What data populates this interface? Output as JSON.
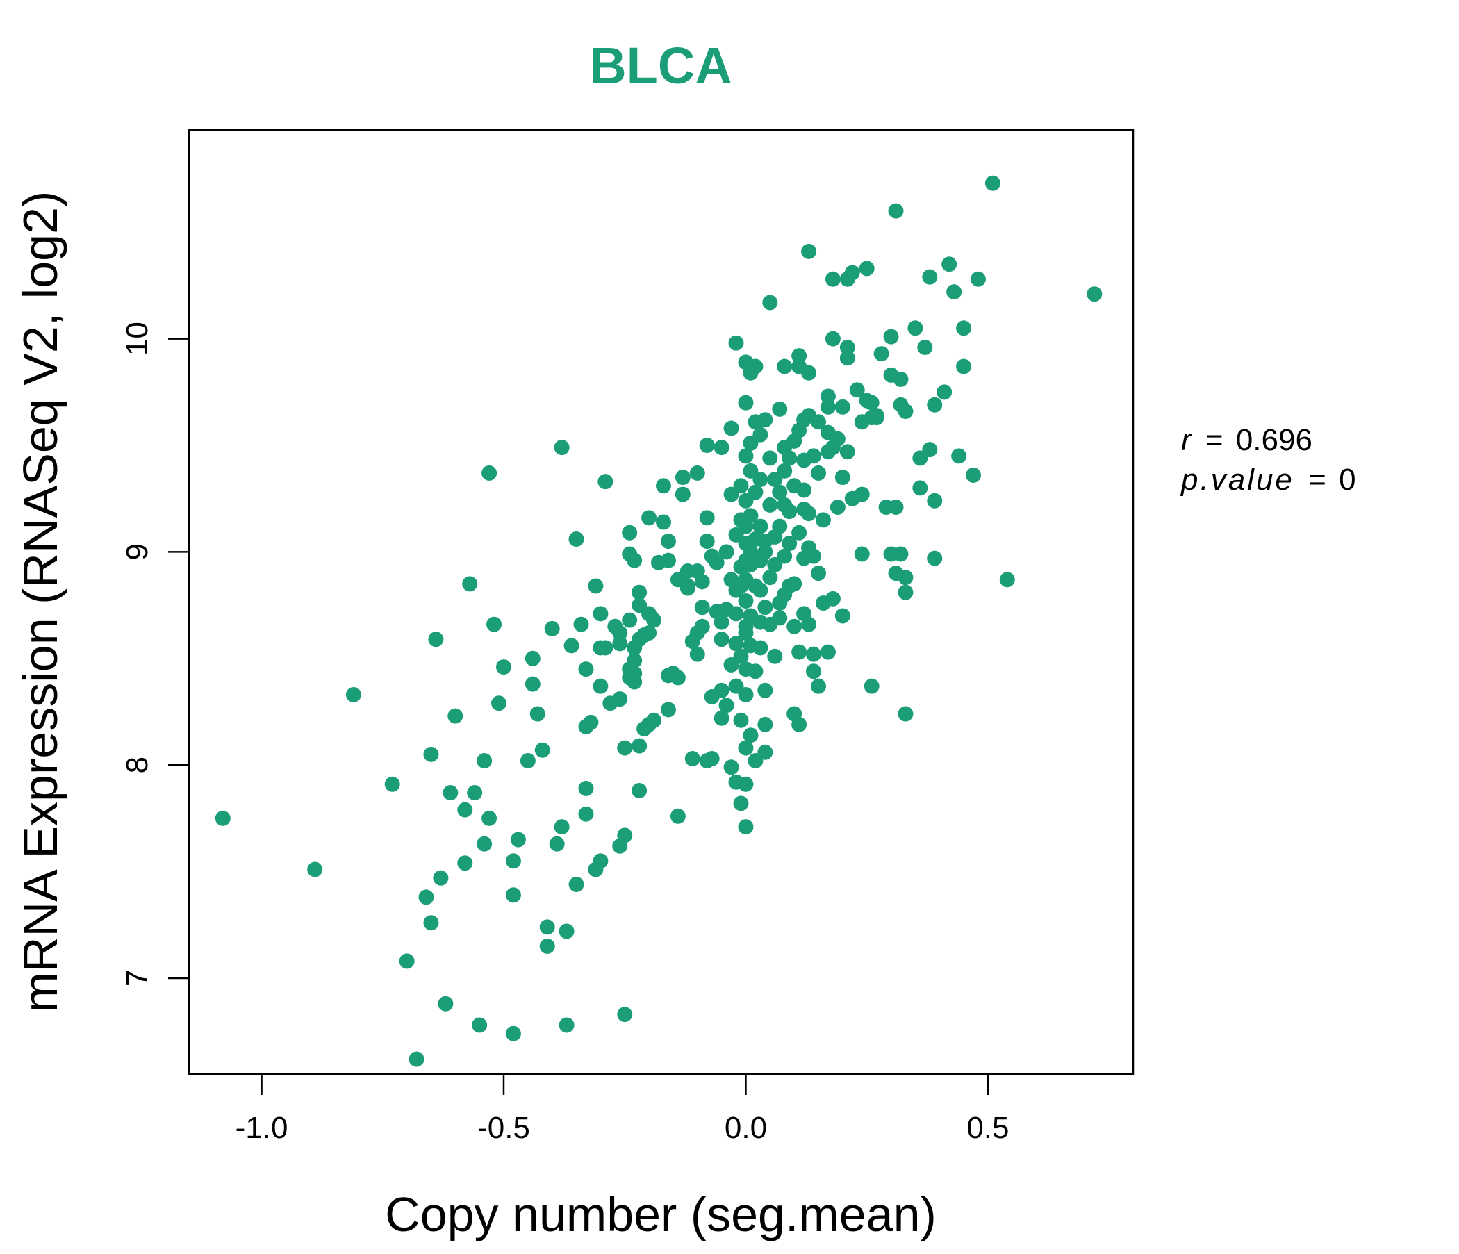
{
  "chart_data": {
    "type": "scatter",
    "title": "BLCA",
    "xlabel": "Copy number (seg.mean)",
    "ylabel": "mRNA Expression (RNASeq V2, log2)",
    "xlim": [
      -1.15,
      0.8
    ],
    "ylim": [
      6.55,
      10.98
    ],
    "xticks": [
      -1.0,
      -0.5,
      0.0,
      0.5
    ],
    "xtick_labels": [
      "-1.0",
      "-0.5",
      "0.0",
      "0.5"
    ],
    "yticks": [
      7,
      8,
      9,
      10
    ],
    "ytick_labels": [
      "7",
      "8",
      "9",
      "10"
    ],
    "grid": false,
    "legend": "none",
    "point_color": "#1b9e77",
    "annotations": {
      "r_label": "r",
      "r_value": "0.696",
      "p_label": "p.value",
      "p_value": "0"
    },
    "points": [
      [
        -1.08,
        7.75
      ],
      [
        -0.89,
        7.51
      ],
      [
        -0.81,
        8.33
      ],
      [
        -0.73,
        7.91
      ],
      [
        -0.7,
        7.08
      ],
      [
        -0.68,
        6.62
      ],
      [
        -0.66,
        7.38
      ],
      [
        -0.65,
        7.26
      ],
      [
        -0.65,
        8.05
      ],
      [
        -0.64,
        8.59
      ],
      [
        -0.63,
        7.47
      ],
      [
        -0.62,
        6.88
      ],
      [
        -0.61,
        7.87
      ],
      [
        -0.6,
        8.23
      ],
      [
        -0.58,
        7.54
      ],
      [
        -0.58,
        7.79
      ],
      [
        -0.57,
        8.85
      ],
      [
        -0.56,
        7.87
      ],
      [
        -0.55,
        6.78
      ],
      [
        -0.54,
        7.63
      ],
      [
        -0.54,
        8.02
      ],
      [
        -0.53,
        9.37
      ],
      [
        -0.53,
        7.75
      ],
      [
        -0.52,
        8.66
      ],
      [
        -0.51,
        8.29
      ],
      [
        -0.5,
        8.46
      ],
      [
        -0.48,
        6.74
      ],
      [
        -0.48,
        7.39
      ],
      [
        -0.48,
        7.55
      ],
      [
        -0.47,
        7.65
      ],
      [
        -0.45,
        8.02
      ],
      [
        -0.44,
        8.38
      ],
      [
        -0.44,
        8.5
      ],
      [
        -0.43,
        8.24
      ],
      [
        -0.42,
        8.07
      ],
      [
        -0.41,
        7.15
      ],
      [
        -0.41,
        7.24
      ],
      [
        -0.4,
        8.64
      ],
      [
        -0.39,
        7.63
      ],
      [
        -0.38,
        9.49
      ],
      [
        -0.38,
        7.71
      ],
      [
        -0.37,
        7.22
      ],
      [
        -0.37,
        6.78
      ],
      [
        -0.36,
        8.56
      ],
      [
        -0.35,
        7.44
      ],
      [
        -0.35,
        9.06
      ],
      [
        -0.34,
        8.66
      ],
      [
        -0.33,
        7.89
      ],
      [
        -0.33,
        7.77
      ],
      [
        -0.33,
        8.45
      ],
      [
        -0.33,
        8.18
      ],
      [
        -0.32,
        8.2
      ],
      [
        -0.31,
        8.84
      ],
      [
        -0.31,
        7.51
      ],
      [
        -0.3,
        8.71
      ],
      [
        -0.3,
        7.55
      ],
      [
        -0.3,
        8.37
      ],
      [
        -0.3,
        8.55
      ],
      [
        -0.29,
        8.55
      ],
      [
        -0.29,
        9.33
      ],
      [
        -0.28,
        8.29
      ],
      [
        -0.27,
        8.65
      ],
      [
        -0.26,
        8.62
      ],
      [
        -0.26,
        8.57
      ],
      [
        -0.26,
        7.62
      ],
      [
        -0.26,
        8.31
      ],
      [
        -0.25,
        6.83
      ],
      [
        -0.25,
        8.08
      ],
      [
        -0.25,
        7.67
      ],
      [
        -0.24,
        8.68
      ],
      [
        -0.24,
        9.09
      ],
      [
        -0.24,
        8.99
      ],
      [
        -0.24,
        8.45
      ],
      [
        -0.24,
        8.41
      ],
      [
        -0.23,
        8.49
      ],
      [
        -0.23,
        8.96
      ],
      [
        -0.23,
        8.39
      ],
      [
        -0.23,
        8.43
      ],
      [
        -0.23,
        8.55
      ],
      [
        -0.22,
        8.59
      ],
      [
        -0.22,
        8.81
      ],
      [
        -0.22,
        8.75
      ],
      [
        -0.22,
        8.09
      ],
      [
        -0.22,
        7.88
      ],
      [
        -0.21,
        8.61
      ],
      [
        -0.21,
        8.17
      ],
      [
        -0.2,
        8.19
      ],
      [
        -0.2,
        8.62
      ],
      [
        -0.2,
        9.16
      ],
      [
        -0.2,
        8.71
      ],
      [
        -0.19,
        8.21
      ],
      [
        -0.19,
        8.68
      ],
      [
        -0.18,
        8.95
      ],
      [
        -0.17,
        9.14
      ],
      [
        -0.17,
        9.31
      ],
      [
        -0.16,
        8.96
      ],
      [
        -0.16,
        9.05
      ],
      [
        -0.16,
        8.26
      ],
      [
        -0.16,
        8.42
      ],
      [
        -0.15,
        8.43
      ],
      [
        -0.14,
        8.41
      ],
      [
        -0.14,
        7.76
      ],
      [
        -0.14,
        8.87
      ],
      [
        -0.13,
        9.27
      ],
      [
        -0.13,
        9.35
      ],
      [
        -0.12,
        8.84
      ],
      [
        -0.12,
        8.91
      ],
      [
        -0.12,
        8.83
      ],
      [
        -0.11,
        8.58
      ],
      [
        -0.11,
        8.03
      ],
      [
        -0.1,
        9.37
      ],
      [
        -0.1,
        8.91
      ],
      [
        -0.1,
        8.62
      ],
      [
        -0.1,
        8.52
      ],
      [
        -0.09,
        8.74
      ],
      [
        -0.09,
        8.86
      ],
      [
        -0.09,
        8.65
      ],
      [
        -0.08,
        9.5
      ],
      [
        -0.08,
        9.16
      ],
      [
        -0.08,
        8.02
      ],
      [
        -0.08,
        9.05
      ],
      [
        -0.07,
        8.03
      ],
      [
        -0.07,
        8.98
      ],
      [
        -0.07,
        8.32
      ],
      [
        -0.06,
        8.72
      ],
      [
        -0.06,
        8.95
      ],
      [
        -0.05,
        8.35
      ],
      [
        -0.05,
        8.22
      ],
      [
        -0.05,
        8.67
      ],
      [
        -0.05,
        8.59
      ],
      [
        -0.05,
        9.49
      ],
      [
        -0.04,
        8.73
      ],
      [
        -0.04,
        9.0
      ],
      [
        -0.04,
        8.28
      ],
      [
        -0.03,
        8.47
      ],
      [
        -0.03,
        7.99
      ],
      [
        -0.03,
        8.87
      ],
      [
        -0.03,
        9.58
      ],
      [
        -0.03,
        9.27
      ],
      [
        -0.02,
        7.92
      ],
      [
        -0.02,
        8.37
      ],
      [
        -0.02,
        8.57
      ],
      [
        -0.02,
        8.71
      ],
      [
        -0.02,
        8.82
      ],
      [
        -0.02,
        9.08
      ],
      [
        -0.02,
        9.98
      ],
      [
        -0.01,
        7.82
      ],
      [
        -0.01,
        8.51
      ],
      [
        -0.01,
        8.93
      ],
      [
        -0.01,
        9.15
      ],
      [
        -0.01,
        9.31
      ],
      [
        -0.01,
        8.84
      ],
      [
        -0.01,
        8.21
      ],
      [
        0.0,
        8.08
      ],
      [
        0.0,
        8.62
      ],
      [
        0.0,
        8.96
      ],
      [
        0.0,
        9.45
      ],
      [
        0.0,
        7.91
      ],
      [
        0.0,
        8.33
      ],
      [
        0.0,
        8.65
      ],
      [
        0.0,
        8.77
      ],
      [
        0.0,
        9.04
      ],
      [
        0.0,
        9.24
      ],
      [
        0.0,
        9.7
      ],
      [
        0.0,
        7.71
      ],
      [
        0.0,
        8.45
      ],
      [
        0.0,
        8.87
      ],
      [
        0.0,
        9.12
      ],
      [
        0.0,
        9.89
      ],
      [
        0.01,
        8.14
      ],
      [
        0.01,
        8.56
      ],
      [
        0.01,
        8.7
      ],
      [
        0.01,
        9.0
      ],
      [
        0.01,
        9.38
      ],
      [
        0.01,
        9.84
      ],
      [
        0.01,
        9.51
      ],
      [
        0.01,
        8.94
      ],
      [
        0.01,
        9.17
      ],
      [
        0.02,
        9.61
      ],
      [
        0.02,
        8.02
      ],
      [
        0.02,
        8.44
      ],
      [
        0.02,
        8.84
      ],
      [
        0.02,
        9.06
      ],
      [
        0.02,
        9.28
      ],
      [
        0.02,
        9.87
      ],
      [
        0.03,
        8.67
      ],
      [
        0.03,
        8.96
      ],
      [
        0.03,
        9.12
      ],
      [
        0.03,
        9.55
      ],
      [
        0.03,
        8.55
      ],
      [
        0.03,
        8.82
      ],
      [
        0.03,
        9.34
      ],
      [
        0.04,
        8.06
      ],
      [
        0.04,
        8.19
      ],
      [
        0.04,
        8.74
      ],
      [
        0.04,
        9.05
      ],
      [
        0.04,
        9.62
      ],
      [
        0.04,
        8.35
      ],
      [
        0.04,
        9.0
      ],
      [
        0.05,
        9.22
      ],
      [
        0.05,
        10.17
      ],
      [
        0.05,
        8.88
      ],
      [
        0.05,
        9.44
      ],
      [
        0.05,
        8.66
      ],
      [
        0.06,
        9.07
      ],
      [
        0.06,
        8.51
      ],
      [
        0.06,
        9.34
      ],
      [
        0.06,
        8.94
      ],
      [
        0.07,
        8.76
      ],
      [
        0.07,
        9.67
      ],
      [
        0.07,
        9.28
      ],
      [
        0.07,
        9.12
      ],
      [
        0.07,
        8.69
      ],
      [
        0.08,
        8.98
      ],
      [
        0.08,
        9.22
      ],
      [
        0.08,
        9.49
      ],
      [
        0.08,
        9.87
      ],
      [
        0.08,
        8.8
      ],
      [
        0.08,
        9.38
      ],
      [
        0.09,
        8.84
      ],
      [
        0.09,
        9.44
      ],
      [
        0.09,
        9.19
      ],
      [
        0.09,
        9.04
      ],
      [
        0.1,
        8.65
      ],
      [
        0.1,
        9.52
      ],
      [
        0.1,
        9.31
      ],
      [
        0.1,
        8.85
      ],
      [
        0.1,
        8.24
      ],
      [
        0.11,
        9.57
      ],
      [
        0.11,
        9.92
      ],
      [
        0.11,
        9.09
      ],
      [
        0.11,
        8.53
      ],
      [
        0.11,
        8.19
      ],
      [
        0.11,
        9.87
      ],
      [
        0.12,
        9.62
      ],
      [
        0.12,
        9.2
      ],
      [
        0.12,
        8.71
      ],
      [
        0.12,
        9.29
      ],
      [
        0.12,
        8.97
      ],
      [
        0.12,
        9.43
      ],
      [
        0.13,
        8.66
      ],
      [
        0.13,
        9.02
      ],
      [
        0.13,
        10.41
      ],
      [
        0.13,
        9.84
      ],
      [
        0.13,
        9.64
      ],
      [
        0.13,
        9.18
      ],
      [
        0.14,
        8.44
      ],
      [
        0.14,
        9.45
      ],
      [
        0.14,
        8.98
      ],
      [
        0.14,
        8.52
      ],
      [
        0.15,
        8.9
      ],
      [
        0.15,
        8.37
      ],
      [
        0.15,
        9.37
      ],
      [
        0.15,
        9.61
      ],
      [
        0.16,
        9.15
      ],
      [
        0.16,
        8.76
      ],
      [
        0.17,
        9.73
      ],
      [
        0.17,
        9.47
      ],
      [
        0.17,
        8.53
      ],
      [
        0.17,
        9.68
      ],
      [
        0.17,
        9.56
      ],
      [
        0.18,
        8.78
      ],
      [
        0.18,
        9.49
      ],
      [
        0.18,
        10.0
      ],
      [
        0.18,
        10.28
      ],
      [
        0.19,
        9.21
      ],
      [
        0.19,
        9.53
      ],
      [
        0.2,
        8.7
      ],
      [
        0.2,
        9.68
      ],
      [
        0.2,
        9.35
      ],
      [
        0.21,
        10.28
      ],
      [
        0.21,
        9.96
      ],
      [
        0.21,
        9.91
      ],
      [
        0.21,
        9.47
      ],
      [
        0.22,
        9.25
      ],
      [
        0.22,
        10.31
      ],
      [
        0.23,
        9.76
      ],
      [
        0.24,
        9.27
      ],
      [
        0.24,
        8.99
      ],
      [
        0.24,
        9.61
      ],
      [
        0.25,
        10.33
      ],
      [
        0.25,
        9.71
      ],
      [
        0.26,
        9.7
      ],
      [
        0.26,
        9.63
      ],
      [
        0.26,
        8.37
      ],
      [
        0.27,
        9.63
      ],
      [
        0.27,
        9.64
      ],
      [
        0.28,
        9.93
      ],
      [
        0.29,
        9.21
      ],
      [
        0.3,
        10.01
      ],
      [
        0.3,
        9.83
      ],
      [
        0.3,
        8.99
      ],
      [
        0.31,
        9.21
      ],
      [
        0.31,
        8.9
      ],
      [
        0.31,
        10.6
      ],
      [
        0.32,
        8.99
      ],
      [
        0.32,
        9.81
      ],
      [
        0.32,
        9.69
      ],
      [
        0.33,
        8.24
      ],
      [
        0.33,
        9.66
      ],
      [
        0.33,
        8.81
      ],
      [
        0.33,
        8.88
      ],
      [
        0.35,
        10.05
      ],
      [
        0.36,
        9.44
      ],
      [
        0.36,
        9.3
      ],
      [
        0.37,
        9.96
      ],
      [
        0.38,
        10.29
      ],
      [
        0.38,
        9.48
      ],
      [
        0.39,
        9.24
      ],
      [
        0.39,
        9.69
      ],
      [
        0.39,
        8.97
      ],
      [
        0.41,
        9.75
      ],
      [
        0.42,
        10.35
      ],
      [
        0.43,
        10.22
      ],
      [
        0.44,
        9.45
      ],
      [
        0.45,
        9.87
      ],
      [
        0.45,
        10.05
      ],
      [
        0.47,
        9.36
      ],
      [
        0.48,
        10.28
      ],
      [
        0.51,
        10.73
      ],
      [
        0.54,
        8.87
      ],
      [
        0.72,
        10.21
      ]
    ]
  }
}
